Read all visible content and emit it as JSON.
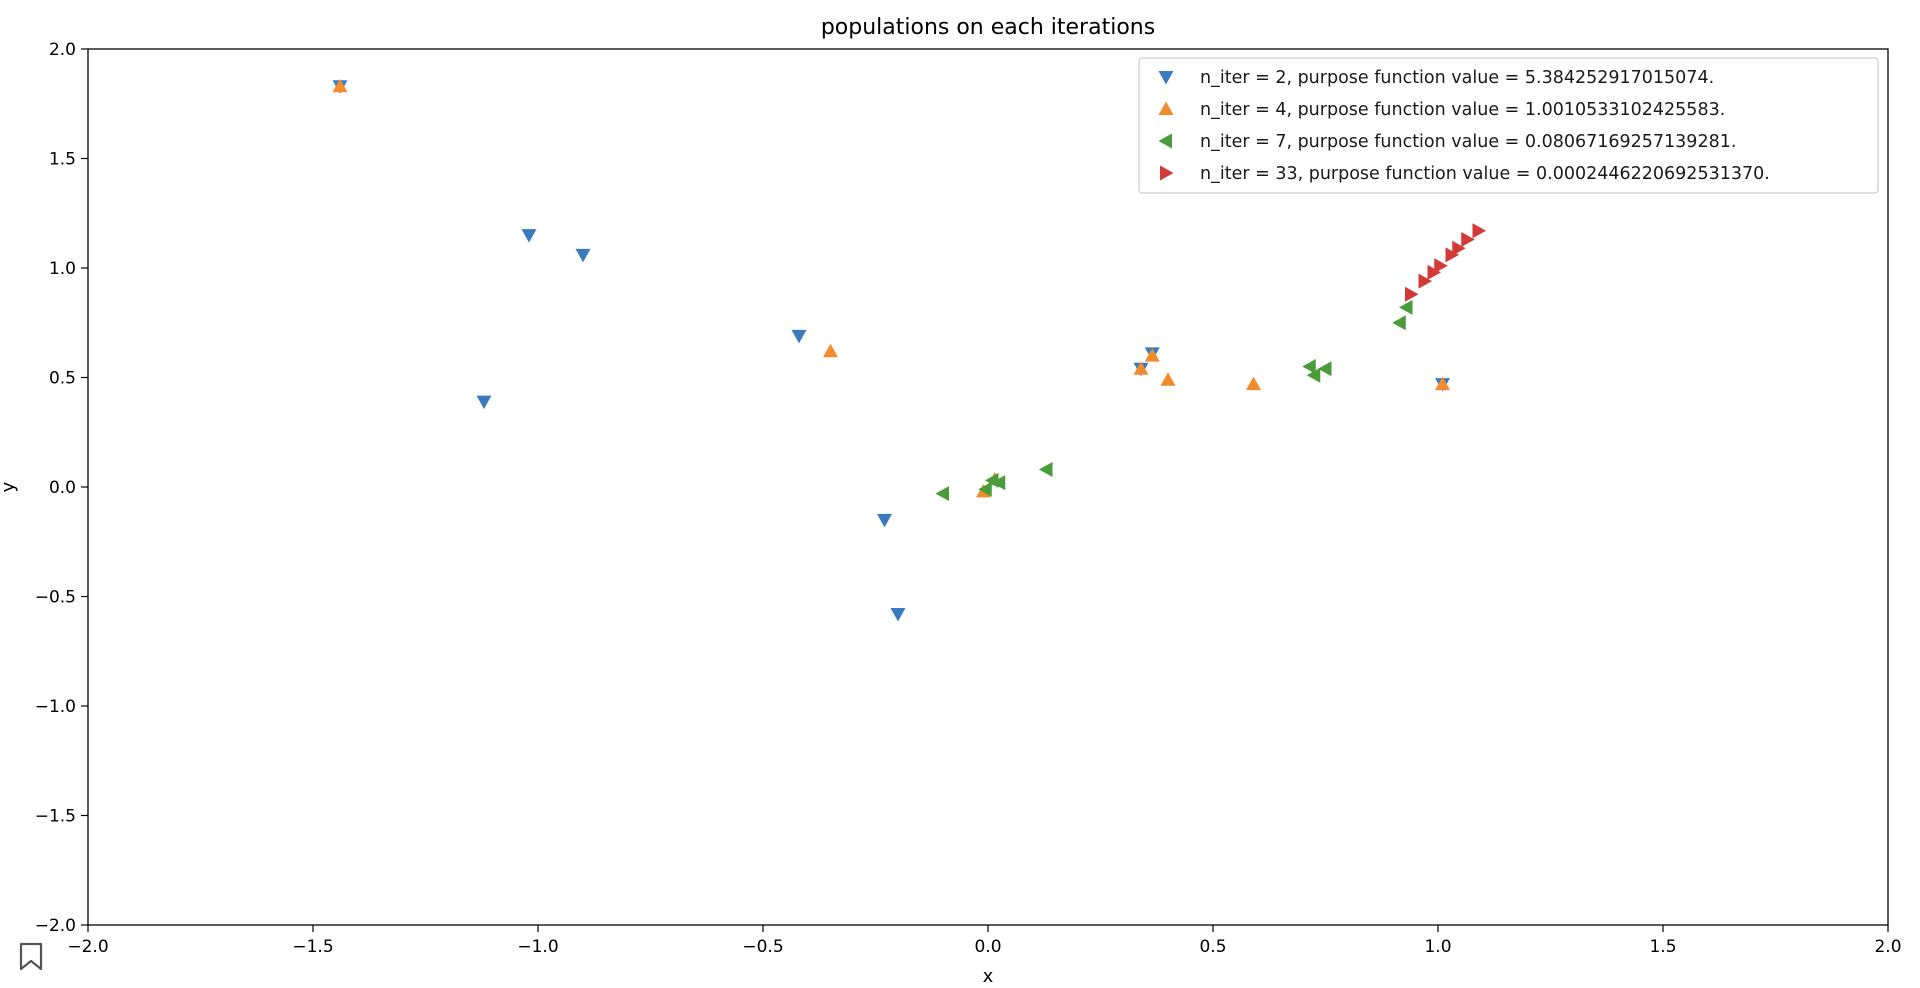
{
  "chart_data": {
    "type": "scatter",
    "title": "populations on each iterations",
    "xlabel": "x",
    "ylabel": "y",
    "xlim": [
      -2.0,
      2.0
    ],
    "ylim": [
      -2.0,
      2.0
    ],
    "xticks": [
      -2.0,
      -1.5,
      -1.0,
      -0.5,
      0.0,
      0.5,
      1.0,
      1.5,
      2.0
    ],
    "yticks": [
      -2.0,
      -1.5,
      -1.0,
      -0.5,
      0.0,
      0.5,
      1.0,
      1.5,
      2.0
    ],
    "xtick_labels": [
      "−2.0",
      "−1.5",
      "−1.0",
      "−0.5",
      "0.0",
      "0.5",
      "1.0",
      "1.5",
      "2.0"
    ],
    "ytick_labels": [
      "−2.0",
      "−1.5",
      "−1.0",
      "−0.5",
      "0.0",
      "0.5",
      "1.0",
      "1.5",
      "2.0"
    ],
    "grid": false,
    "legend_position": "top-right",
    "series": [
      {
        "name": "n_iter = 2, purpose function value = 5.384252917015074.",
        "marker": "triangle-down",
        "color": "#3a7bbf",
        "points": [
          [
            -1.44,
            1.83
          ],
          [
            -1.02,
            1.15
          ],
          [
            -0.9,
            1.06
          ],
          [
            -1.12,
            0.39
          ],
          [
            -0.42,
            0.69
          ],
          [
            -0.23,
            -0.15
          ],
          [
            -0.2,
            -0.58
          ],
          [
            0.34,
            0.54
          ],
          [
            0.365,
            0.61
          ],
          [
            1.01,
            0.47
          ]
        ]
      },
      {
        "name": "n_iter = 4, purpose function value = 1.0010533102425583.",
        "marker": "triangle-up",
        "color": "#f28a2e",
        "points": [
          [
            -1.44,
            1.83
          ],
          [
            -0.35,
            0.62
          ],
          [
            0.34,
            0.54
          ],
          [
            0.365,
            0.6
          ],
          [
            0.4,
            0.49
          ],
          [
            0.59,
            0.47
          ],
          [
            1.01,
            0.47
          ],
          [
            -0.01,
            -0.02
          ],
          [
            0.015,
            0.035
          ]
        ]
      },
      {
        "name": "n_iter = 7, purpose function value = 0.08067169257139281.",
        "marker": "triangle-left",
        "color": "#4a9c3a",
        "points": [
          [
            -0.1,
            -0.03
          ],
          [
            -0.005,
            -0.01
          ],
          [
            0.01,
            0.03
          ],
          [
            0.025,
            0.02
          ],
          [
            0.13,
            0.08
          ],
          [
            0.715,
            0.55
          ],
          [
            0.725,
            0.51
          ],
          [
            0.75,
            0.54
          ],
          [
            0.915,
            0.75
          ],
          [
            0.93,
            0.82
          ]
        ]
      },
      {
        "name": "n_iter = 33, purpose function value = 0.0002446220692531370.",
        "marker": "triangle-right",
        "color": "#d13a36",
        "points": [
          [
            0.94,
            0.88
          ],
          [
            0.97,
            0.94
          ],
          [
            0.99,
            0.98
          ],
          [
            1.005,
            1.01
          ],
          [
            1.03,
            1.06
          ],
          [
            1.045,
            1.09
          ],
          [
            1.065,
            1.13
          ],
          [
            1.09,
            1.17
          ]
        ]
      }
    ]
  },
  "ui": {
    "bookmark_icon": "bookmark-outline-icon"
  }
}
